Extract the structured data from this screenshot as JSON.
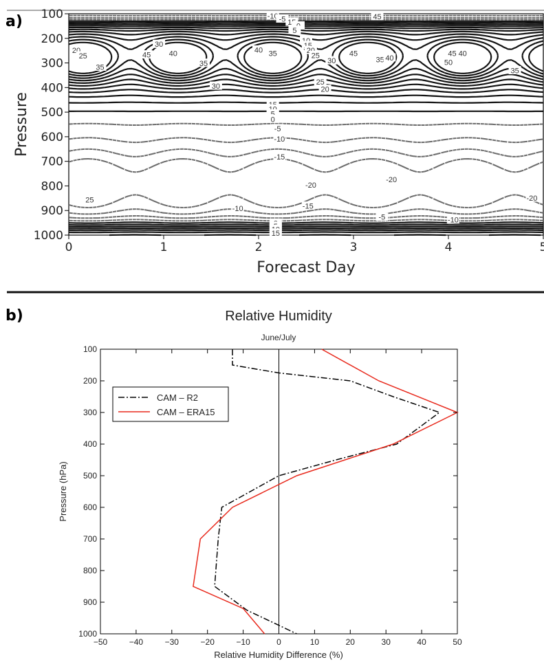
{
  "panel_a_label": "a)",
  "panel_b_label": "b)",
  "chart_data": [
    {
      "type": "contour",
      "title": "",
      "xlabel": "Forecast Day",
      "ylabel": "Pressure",
      "xlim": [
        0,
        5
      ],
      "ylim": [
        1000,
        100
      ],
      "x_ticks": [
        "0",
        "1",
        "2",
        "3",
        "4",
        "5"
      ],
      "y_ticks": [
        "100",
        "200",
        "300",
        "400",
        "500",
        "600",
        "700",
        "800",
        "900",
        "1000"
      ],
      "solid_contours_positive": true,
      "dashed_contours_negative": true,
      "contour_labels": [
        {
          "text": "-10",
          "x": 2.15,
          "y": 110
        },
        {
          "text": "-5",
          "x": 2.25,
          "y": 122
        },
        {
          "text": "45",
          "x": 3.25,
          "y": 112
        },
        {
          "text": "15",
          "x": 2.35,
          "y": 135
        },
        {
          "text": "0",
          "x": 2.42,
          "y": 150
        },
        {
          "text": "5",
          "x": 2.38,
          "y": 168
        },
        {
          "text": "10",
          "x": 2.5,
          "y": 210
        },
        {
          "text": "15",
          "x": 2.52,
          "y": 230
        },
        {
          "text": "20",
          "x": 2.55,
          "y": 250
        },
        {
          "text": "25",
          "x": 2.6,
          "y": 270
        },
        {
          "text": "20",
          "x": 0.08,
          "y": 250
        },
        {
          "text": "25",
          "x": 0.15,
          "y": 272
        },
        {
          "text": "35",
          "x": 0.33,
          "y": 318
        },
        {
          "text": "30",
          "x": 0.95,
          "y": 225
        },
        {
          "text": "45",
          "x": 0.82,
          "y": 268
        },
        {
          "text": "40",
          "x": 1.1,
          "y": 262
        },
        {
          "text": "35",
          "x": 1.42,
          "y": 302
        },
        {
          "text": "40",
          "x": 2.0,
          "y": 248
        },
        {
          "text": "35",
          "x": 2.15,
          "y": 262
        },
        {
          "text": "30",
          "x": 2.77,
          "y": 292
        },
        {
          "text": "45",
          "x": 3.0,
          "y": 262
        },
        {
          "text": "35",
          "x": 3.28,
          "y": 287
        },
        {
          "text": "40",
          "x": 3.38,
          "y": 280
        },
        {
          "text": "45",
          "x": 4.04,
          "y": 262
        },
        {
          "text": "40",
          "x": 4.15,
          "y": 262
        },
        {
          "text": "50",
          "x": 4.0,
          "y": 298
        },
        {
          "text": "35",
          "x": 4.7,
          "y": 332
        },
        {
          "text": "30",
          "x": 1.55,
          "y": 395
        },
        {
          "text": "25",
          "x": 2.65,
          "y": 378
        },
        {
          "text": "20",
          "x": 2.7,
          "y": 408
        },
        {
          "text": "15",
          "x": 2.15,
          "y": 470
        },
        {
          "text": "10",
          "x": 2.15,
          "y": 488
        },
        {
          "text": "5",
          "x": 2.15,
          "y": 508
        },
        {
          "text": "0",
          "x": 2.15,
          "y": 530
        },
        {
          "text": "-5",
          "x": 2.2,
          "y": 568
        },
        {
          "text": "-10",
          "x": 2.22,
          "y": 610
        },
        {
          "text": "-15",
          "x": 2.22,
          "y": 683
        },
        {
          "text": "-20",
          "x": 2.55,
          "y": 798
        },
        {
          "text": "-20",
          "x": 3.4,
          "y": 775
        },
        {
          "text": "25",
          "x": 0.22,
          "y": 858
        },
        {
          "text": "-10",
          "x": 1.78,
          "y": 893
        },
        {
          "text": "-15",
          "x": 2.52,
          "y": 883
        },
        {
          "text": "-5",
          "x": 3.3,
          "y": 928
        },
        {
          "text": "-10",
          "x": 4.05,
          "y": 938
        },
        {
          "text": "-20",
          "x": 4.88,
          "y": 850
        },
        {
          "text": "0",
          "x": 2.18,
          "y": 952
        },
        {
          "text": "5",
          "x": 2.18,
          "y": 965
        },
        {
          "text": "10",
          "x": 2.18,
          "y": 978
        },
        {
          "text": "15",
          "x": 2.18,
          "y": 993
        }
      ]
    },
    {
      "type": "line",
      "title": "Relative Humidity",
      "subtitle": "June/July",
      "xlabel": "Relative Humidity Difference (%)",
      "ylabel": "Pressure (hPa)",
      "xlim": [
        -50,
        50
      ],
      "ylim": [
        1000,
        100
      ],
      "x_ticks": [
        "−50",
        "−40",
        "−30",
        "−20",
        "−10",
        "0",
        "10",
        "20",
        "30",
        "40",
        "50"
      ],
      "y_ticks": [
        "100",
        "200",
        "300",
        "400",
        "500",
        "600",
        "700",
        "800",
        "900",
        "1000"
      ],
      "legend_position": "upper-left",
      "series": [
        {
          "name": "CAM – R2",
          "color": "#000000",
          "style": "dashdot",
          "points": [
            [
              -13,
              100
            ],
            [
              -13,
              150
            ],
            [
              0,
              175
            ],
            [
              20,
              200
            ],
            [
              32,
              250
            ],
            [
              45,
              300
            ],
            [
              33,
              400
            ],
            [
              16,
              450
            ],
            [
              0,
              500
            ],
            [
              -8,
              550
            ],
            [
              -16,
              600
            ],
            [
              -17,
              700
            ],
            [
              -18,
              850
            ],
            [
              -9,
              925
            ],
            [
              5,
              1000
            ]
          ]
        },
        {
          "name": "CAM – ERA15",
          "color": "#e8291c",
          "style": "solid",
          "points": [
            [
              12,
              100
            ],
            [
              28,
              200
            ],
            [
              50,
              300
            ],
            [
              32,
              400
            ],
            [
              5,
              500
            ],
            [
              -13,
              600
            ],
            [
              -22,
              700
            ],
            [
              -24,
              850
            ],
            [
              -10,
              920
            ],
            [
              -4,
              1000
            ]
          ]
        }
      ]
    }
  ]
}
